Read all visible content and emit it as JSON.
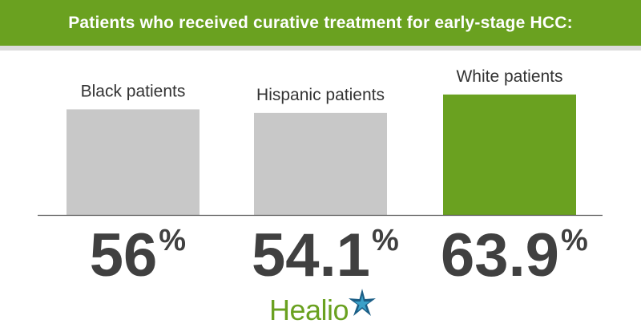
{
  "header": {
    "title": "Patients who received curative treatment for early-stage HCC:"
  },
  "brand": {
    "name": "Healio",
    "logo_icon": "healio-star-icon",
    "color": "#6aa120",
    "star_color": "#1b5e86"
  },
  "colors": {
    "header_bg": "#6aa120",
    "bar_gray": "#c8c8c8",
    "bar_highlight": "#6aa120",
    "value_text": "#404040"
  },
  "chart_data": {
    "type": "bar",
    "title": "Patients who received curative treatment for early-stage HCC:",
    "categories": [
      "Black patients",
      "Hispanic patients",
      "White patients"
    ],
    "values": [
      56,
      54.1,
      63.9
    ],
    "value_labels": [
      "56",
      "54.1",
      "63.9"
    ],
    "unit": "%",
    "highlight_index": 2,
    "ylim": [
      0,
      70
    ],
    "grid": false,
    "legend": "none",
    "xlabel": "",
    "ylabel": ""
  }
}
